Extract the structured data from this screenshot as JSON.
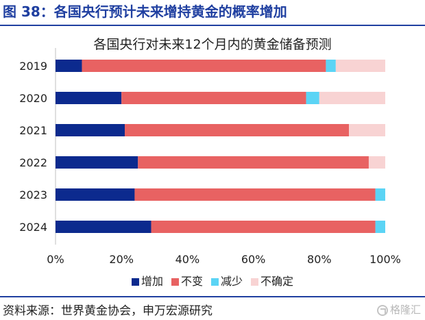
{
  "header": {
    "title": "图 38：各国央行预计未来增持黄金的概率增加"
  },
  "chart_data": {
    "type": "bar",
    "orientation": "horizontal",
    "stacked": true,
    "title": "各国央行对未来12个月内的黄金储备预测",
    "categories": [
      "2019",
      "2020",
      "2021",
      "2022",
      "2023",
      "2024"
    ],
    "series": [
      {
        "name": "增加",
        "color": "#0c2a8e",
        "values": [
          8,
          20,
          21,
          25,
          24,
          29
        ]
      },
      {
        "name": "不变",
        "color": "#e86262",
        "values": [
          74,
          56,
          68,
          70,
          73,
          68
        ]
      },
      {
        "name": "减少",
        "color": "#5bd4f5",
        "values": [
          3,
          4,
          0,
          0,
          3,
          3
        ]
      },
      {
        "name": "不确定",
        "color": "#f8d3d3",
        "values": [
          15,
          20,
          11,
          5,
          0,
          0
        ]
      }
    ],
    "x_ticks": [
      "0%",
      "20%",
      "40%",
      "60%",
      "80%",
      "100%"
    ],
    "xlim": [
      0,
      100
    ],
    "grid": false,
    "legend_position": "bottom"
  },
  "footer": {
    "source": "资料来源：世界黄金协会，申万宏源研究",
    "watermark": "格隆汇"
  }
}
